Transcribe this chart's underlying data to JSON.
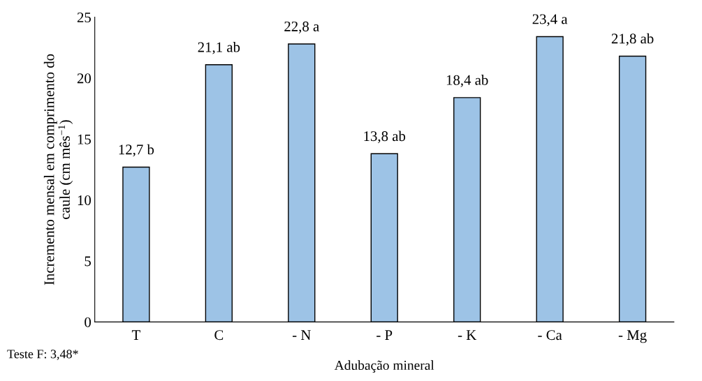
{
  "chart_data": {
    "type": "bar",
    "categories": [
      "T",
      "C",
      "- N",
      "- P",
      "- K",
      "- Ca",
      "- Mg"
    ],
    "values": [
      12.7,
      21.1,
      22.8,
      13.8,
      18.4,
      23.4,
      21.8
    ],
    "value_labels": [
      "12,7 b",
      "21,1 ab",
      "22,8 a",
      "13,8 ab",
      "18,4 ab",
      "23,4 a",
      "21,8 ab"
    ],
    "color": "#9dc3e6",
    "xlabel": "Adubação mineral",
    "ylabel": "Incremento mensal em comprimento do caule (cm mês$^{−1}$)",
    "ylim": [
      0,
      25
    ],
    "yticks": [
      0,
      5,
      10,
      15,
      20,
      25
    ],
    "grid": false,
    "annotations": [
      "Teste F: 3,48*"
    ]
  }
}
